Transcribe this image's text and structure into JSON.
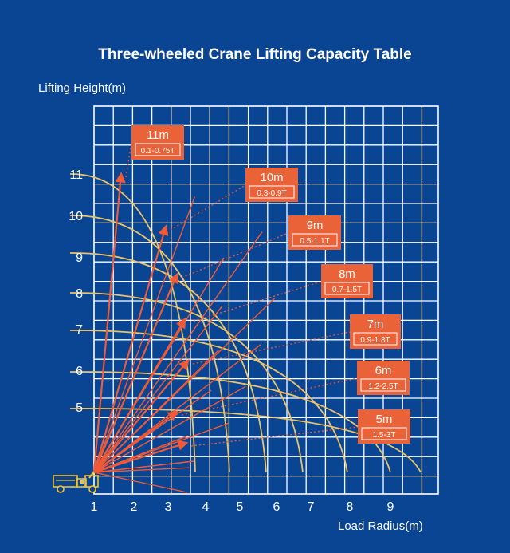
{
  "chart_data": {
    "type": "line",
    "title": "Three-wheeled Crane Lifting Capacity Table",
    "ylabel": "Lifting Height(m)",
    "xlabel": "Load Radius(m)",
    "x_ticks": [
      "1",
      "2",
      "3",
      "4",
      "5",
      "6",
      "7",
      "8",
      "9"
    ],
    "y_ticks": [
      "5",
      "6",
      "7",
      "8",
      "9",
      "10",
      "11"
    ],
    "boom_lengths": [
      {
        "length": "11m",
        "capacity": "0.1-0.75T",
        "boom_length_m": 11,
        "tip_radius_m": 2,
        "tip_height_m": 11
      },
      {
        "length": "10m",
        "capacity": "0.3-0.9T",
        "boom_length_m": 10,
        "tip_radius_m": 3.1,
        "tip_height_m": 9.8
      },
      {
        "length": "9m",
        "capacity": "0.5-1.1T",
        "boom_length_m": 9,
        "tip_radius_m": 3.3,
        "tip_height_m": 8.6
      },
      {
        "length": "8m",
        "capacity": "0.7-1.5T",
        "boom_length_m": 8,
        "tip_radius_m": 3.5,
        "tip_height_m": 7.3
      },
      {
        "length": "7m",
        "capacity": "0.9-1.8T",
        "boom_length_m": 7,
        "tip_radius_m": 3.6,
        "tip_height_m": 6.2
      },
      {
        "length": "6m",
        "capacity": "1.2-2.5T",
        "boom_length_m": 6,
        "tip_radius_m": 3.2,
        "tip_height_m": 5
      },
      {
        "length": "5m",
        "capacity": "1.5-3T",
        "boom_length_m": 5,
        "tip_radius_m": 3.2,
        "tip_height_m": 3.8
      }
    ],
    "grid": true,
    "colors": {
      "background": "#0a4594",
      "grid": "#ffffff",
      "arc": "#e9c36a",
      "boom": "#f05a37",
      "label_box": "#ea6238",
      "text": "#ffffff"
    }
  }
}
